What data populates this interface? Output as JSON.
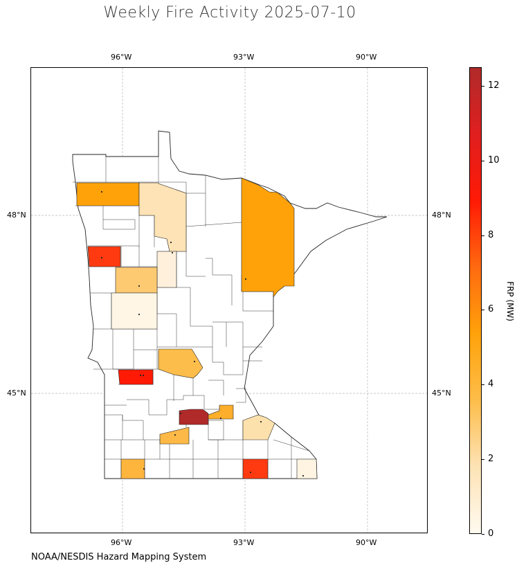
{
  "title": "Weekly Fire Activity 2025-07-10",
  "credit": "NOAA/NESDIS Hazard Mapping System",
  "map": {
    "lon_ticks": [
      "96°W",
      "93°W",
      "90°W"
    ],
    "lat_ticks": [
      "48°N",
      "45°N"
    ],
    "gridlines": true
  },
  "colorbar": {
    "label": "FRP (MW)",
    "ticks": [
      "0",
      "2",
      "4",
      "6",
      "8",
      "10",
      "12"
    ],
    "range": [
      0,
      12.5
    ],
    "colors": [
      "#fffaf0",
      "#fde3b5",
      "#fdbd4a",
      "#ffa20a",
      "#ff6a10",
      "#ff1a05",
      "#e01f1f",
      "#b02a2a"
    ]
  },
  "chart_data": {
    "type": "choropleth",
    "value_label": "FRP (MW)",
    "regions": [
      {
        "location": "northwest (row 1)",
        "value": 4.1
      },
      {
        "location": "north-central",
        "value": 1.8
      },
      {
        "location": "northeast (large)",
        "value": 4.5
      },
      {
        "location": "west-northwest",
        "value": 7.3
      },
      {
        "location": "central-north",
        "value": 0.7
      },
      {
        "location": "west-central",
        "value": 2.6
      },
      {
        "location": "west",
        "value": 0.4
      },
      {
        "location": "central",
        "value": 3.0
      },
      {
        "location": "southwest-central",
        "value": 8.5
      },
      {
        "location": "metro south",
        "value": 12.0
      },
      {
        "location": "metro east",
        "value": 3.6
      },
      {
        "location": "southeast",
        "value": 1.8
      },
      {
        "location": "south-central",
        "value": 3.0
      },
      {
        "location": "south (row)",
        "value": 3.2
      },
      {
        "location": "southeast (row)",
        "value": 7.2
      },
      {
        "location": "far southeast",
        "value": 0.5
      }
    ]
  }
}
